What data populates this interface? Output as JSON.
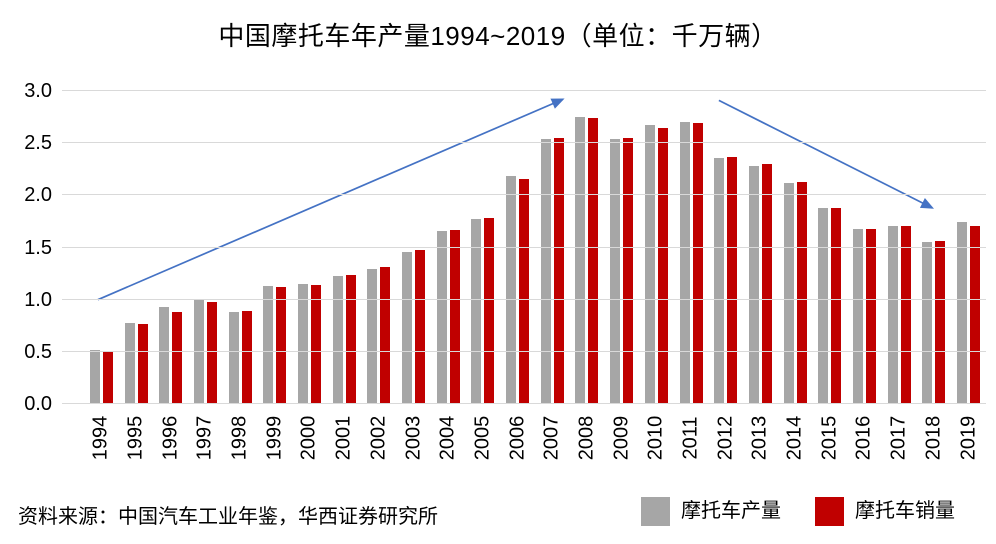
{
  "title": "中国摩托车年产量1994~2019（单位：千万辆）",
  "source_note": "资料来源：中国汽车工业年鉴，华西证券研究所",
  "legend": [
    {
      "label": "摩托车产量",
      "color": "#a6a6a6"
    },
    {
      "label": "摩托车销量",
      "color": "#c00000"
    }
  ],
  "colors": {
    "production_bar": "#a6a6a6",
    "sales_bar": "#c00000",
    "trend_arrow": "#4472c4",
    "gridline": "#d9d9d9",
    "text": "#000000",
    "background": "#ffffff"
  },
  "chart_data": {
    "type": "bar",
    "title": "中国摩托车年产量1994~2019（单位：千万辆）",
    "unit": "千万辆",
    "xlabel": "",
    "ylabel": "",
    "ylim": [
      0,
      3.0
    ],
    "yticks": [
      0,
      0.5,
      1.0,
      1.5,
      2.0,
      2.5,
      3.0
    ],
    "grid": "horizontal",
    "legend_position": "bottom-right",
    "categories": [
      1994,
      1995,
      1996,
      1997,
      1998,
      1999,
      2000,
      2001,
      2002,
      2003,
      2004,
      2005,
      2006,
      2007,
      2008,
      2009,
      2010,
      2011,
      2012,
      2013,
      2014,
      2015,
      2016,
      2017,
      2018,
      2019
    ],
    "series": [
      {
        "name": "摩托车产量",
        "key": "production",
        "color": "#a6a6a6",
        "values": [
          0.52,
          0.78,
          0.93,
          1.0,
          0.88,
          1.13,
          1.15,
          1.23,
          1.29,
          1.46,
          1.66,
          1.77,
          2.19,
          2.54,
          2.75,
          2.54,
          2.67,
          2.7,
          2.36,
          2.28,
          2.12,
          1.88,
          1.68,
          1.71,
          1.55,
          1.74
        ]
      },
      {
        "name": "摩托车销量",
        "key": "sales",
        "color": "#c00000",
        "values": [
          0.51,
          0.77,
          0.88,
          0.98,
          0.89,
          1.12,
          1.14,
          1.24,
          1.31,
          1.48,
          1.67,
          1.78,
          2.16,
          2.55,
          2.74,
          2.55,
          2.65,
          2.69,
          2.37,
          2.3,
          2.13,
          1.88,
          1.68,
          1.71,
          1.56,
          1.71
        ]
      }
    ],
    "annotations": [
      {
        "type": "arrow",
        "trend": "rising",
        "from": {
          "year": 1993.9,
          "value": 1.0
        },
        "to": {
          "year": 2007.3,
          "value": 2.92
        }
      },
      {
        "type": "arrow",
        "trend": "falling",
        "from": {
          "year": 2011.8,
          "value": 2.91
        },
        "to": {
          "year": 2017.95,
          "value": 1.88
        }
      }
    ]
  }
}
